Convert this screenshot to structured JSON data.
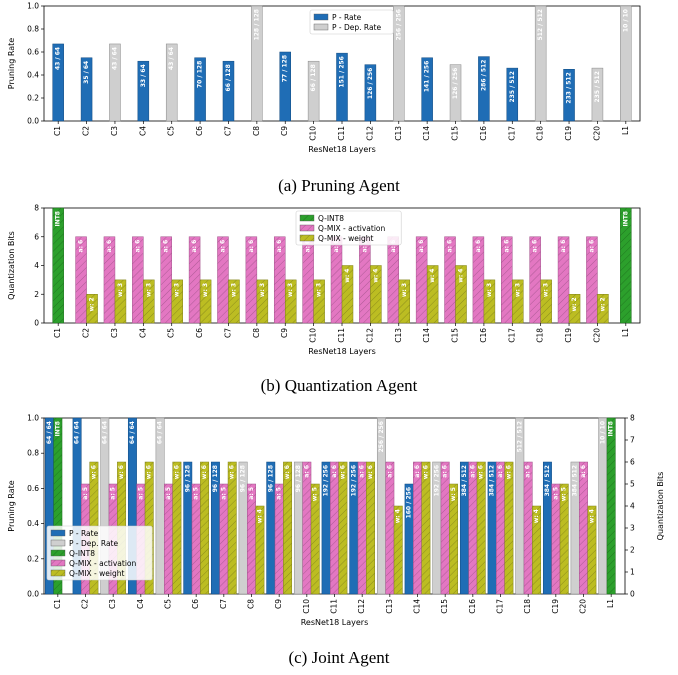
{
  "colors": {
    "p_rate": "#1f6db5",
    "p_dep": "#cfcfcf",
    "q_int8": "#2ca02c",
    "q_act": "#e377c2",
    "q_w": "#bcbd22"
  },
  "chart_data": [
    {
      "type": "bar",
      "caption": "(a) Pruning Agent",
      "xlabel": "ResNet18 Layers",
      "ylabel": "Pruning Rate",
      "ylim": [
        0,
        1.0
      ],
      "yticks": [
        "0.0",
        "0.2",
        "0.4",
        "0.6",
        "0.8",
        "1.0"
      ],
      "legend": [
        "P - Rate",
        "P - Dep. Rate"
      ],
      "categories": [
        "C1",
        "C2",
        "C3",
        "C4",
        "C5",
        "C6",
        "C7",
        "C8",
        "C9",
        "C10",
        "C11",
        "C12",
        "C13",
        "C14",
        "C15",
        "C16",
        "C17",
        "C18",
        "C19",
        "C20",
        "L1"
      ],
      "bars": [
        {
          "kind": "p",
          "value": 0.67,
          "label": "43 / 64"
        },
        {
          "kind": "p",
          "value": 0.55,
          "label": "35 / 64"
        },
        {
          "kind": "dep",
          "value": 0.67,
          "label": "43 / 64"
        },
        {
          "kind": "p",
          "value": 0.52,
          "label": "33 / 64"
        },
        {
          "kind": "dep",
          "value": 0.67,
          "label": "43 / 64"
        },
        {
          "kind": "p",
          "value": 0.55,
          "label": "70 / 128"
        },
        {
          "kind": "p",
          "value": 0.52,
          "label": "66 / 128"
        },
        {
          "kind": "dep",
          "value": 1.0,
          "label": "128 / 128"
        },
        {
          "kind": "p",
          "value": 0.6,
          "label": "77 / 128"
        },
        {
          "kind": "dep",
          "value": 0.52,
          "label": "66 / 128"
        },
        {
          "kind": "p",
          "value": 0.59,
          "label": "151 / 256"
        },
        {
          "kind": "p",
          "value": 0.49,
          "label": "126 / 256"
        },
        {
          "kind": "dep",
          "value": 1.0,
          "label": "256 / 256"
        },
        {
          "kind": "p",
          "value": 0.55,
          "label": "141 / 256"
        },
        {
          "kind": "dep",
          "value": 0.49,
          "label": "126 / 256"
        },
        {
          "kind": "p",
          "value": 0.56,
          "label": "286 / 512"
        },
        {
          "kind": "p",
          "value": 0.46,
          "label": "235 / 512"
        },
        {
          "kind": "dep",
          "value": 1.0,
          "label": "512 / 512"
        },
        {
          "kind": "p",
          "value": 0.45,
          "label": "233 / 512"
        },
        {
          "kind": "dep",
          "value": 0.46,
          "label": "235 / 512"
        },
        {
          "kind": "dep",
          "value": 1.0,
          "label": "10 / 10"
        }
      ]
    },
    {
      "type": "bar",
      "caption": "(b) Quantization Agent",
      "xlabel": "ResNet18 Layers",
      "ylabel": "Quantization Bits",
      "ylim": [
        0,
        8
      ],
      "yticks": [
        "0",
        "2",
        "4",
        "6",
        "8"
      ],
      "legend": [
        "Q-INT8",
        "Q-MIX - activation",
        "Q-MIX - weight"
      ],
      "categories": [
        "C1",
        "C2",
        "C3",
        "C4",
        "C5",
        "C6",
        "C7",
        "C8",
        "C9",
        "C10",
        "C11",
        "C12",
        "C13",
        "C14",
        "C15",
        "C16",
        "C17",
        "C18",
        "C19",
        "C20",
        "L1"
      ],
      "int8_label": "INT8",
      "activation_bits": [
        8,
        6,
        6,
        6,
        6,
        6,
        6,
        6,
        6,
        6,
        6,
        6,
        6,
        6,
        6,
        6,
        6,
        6,
        6,
        6,
        8
      ],
      "activation_labels": [
        "",
        "a: 6",
        "a: 6",
        "a: 6",
        "a: 6",
        "a: 6",
        "a: 6",
        "a: 6",
        "a: 6",
        "a: 6",
        "a: 6",
        "a: 6",
        "a: 6",
        "a: 6",
        "a: 6",
        "a: 6",
        "a: 6",
        "a: 6",
        "a: 6",
        "a: 6",
        ""
      ],
      "weight_bits": [
        null,
        2,
        3,
        3,
        3,
        3,
        3,
        3,
        3,
        3,
        4,
        4,
        3,
        4,
        4,
        3,
        3,
        3,
        2,
        2,
        null
      ],
      "weight_labels": [
        "",
        "w: 2",
        "w: 3",
        "w: 3",
        "w: 3",
        "w: 3",
        "w: 3",
        "w: 3",
        "w: 3",
        "w: 3",
        "w: 4",
        "w: 4",
        "w: 3",
        "w: 4",
        "w: 4",
        "w: 3",
        "w: 3",
        "w: 3",
        "w: 2",
        "w: 2",
        ""
      ]
    },
    {
      "type": "bar",
      "caption": "(c) Joint Agent",
      "xlabel": "ResNet18 Layers",
      "ylabel": "Pruning Rate",
      "ylabel_right": "Quantization Bits",
      "ylim": [
        0,
        1.0
      ],
      "ylim_right": [
        0,
        8
      ],
      "yticks": [
        "0.0",
        "0.2",
        "0.4",
        "0.6",
        "0.8",
        "1.0"
      ],
      "yticks_right": [
        "0",
        "1",
        "2",
        "3",
        "4",
        "5",
        "6",
        "7",
        "8"
      ],
      "legend": [
        "P - Rate",
        "P - Dep. Rate",
        "Q-INT8",
        "Q-MIX - activation",
        "Q-MIX - weight"
      ],
      "categories": [
        "C1",
        "C2",
        "C3",
        "C4",
        "C5",
        "C6",
        "C7",
        "C8",
        "C9",
        "C10",
        "C11",
        "C12",
        "C13",
        "C14",
        "C15",
        "C16",
        "C17",
        "C18",
        "C19",
        "C20",
        "L1"
      ],
      "prune": [
        {
          "kind": "p",
          "value": 1.0,
          "label": "64 / 64"
        },
        {
          "kind": "p",
          "value": 1.0,
          "label": "64 / 64"
        },
        {
          "kind": "dep",
          "value": 1.0,
          "label": "64 / 64"
        },
        {
          "kind": "p",
          "value": 1.0,
          "label": "64 / 64"
        },
        {
          "kind": "dep",
          "value": 1.0,
          "label": "64 / 64"
        },
        {
          "kind": "p",
          "value": 0.75,
          "label": "96 / 128"
        },
        {
          "kind": "p",
          "value": 0.75,
          "label": "96 / 128"
        },
        {
          "kind": "dep",
          "value": 0.75,
          "label": "96 / 128"
        },
        {
          "kind": "p",
          "value": 0.75,
          "label": "96 / 128"
        },
        {
          "kind": "dep",
          "value": 0.75,
          "label": "96 / 128"
        },
        {
          "kind": "p",
          "value": 0.75,
          "label": "192 / 256"
        },
        {
          "kind": "p",
          "value": 0.75,
          "label": "192 / 256"
        },
        {
          "kind": "dep",
          "value": 1.0,
          "label": "256 / 256"
        },
        {
          "kind": "p",
          "value": 0.625,
          "label": "160 / 256"
        },
        {
          "kind": "dep",
          "value": 0.75,
          "label": "192 / 256"
        },
        {
          "kind": "p",
          "value": 0.75,
          "label": "384 / 512"
        },
        {
          "kind": "p",
          "value": 0.75,
          "label": "384 / 512"
        },
        {
          "kind": "dep",
          "value": 1.0,
          "label": "512 / 512"
        },
        {
          "kind": "p",
          "value": 0.75,
          "label": "384 / 512"
        },
        {
          "kind": "dep",
          "value": 0.75,
          "label": "384 / 512"
        },
        {
          "kind": "dep",
          "value": 1.0,
          "label": "10 / 10"
        }
      ],
      "int8_label": "INT8",
      "activation_bits": [
        8,
        5,
        5,
        5,
        5,
        5,
        5,
        5,
        5,
        6,
        6,
        6,
        6,
        6,
        6,
        6,
        6,
        6,
        5,
        6,
        8
      ],
      "activation_labels": [
        "",
        "a: 5",
        "a: 5",
        "a: 5",
        "a: 5",
        "a: 5",
        "a: 5",
        "a: 5",
        "a: 5",
        "a: 6",
        "a: 6",
        "a: 6",
        "a: 6",
        "a: 6",
        "a: 6",
        "a: 6",
        "a: 6",
        "a: 6",
        "a: 5",
        "a: 6",
        ""
      ],
      "weight_bits": [
        null,
        6,
        6,
        6,
        6,
        6,
        6,
        4,
        6,
        5,
        6,
        6,
        4,
        6,
        5,
        6,
        6,
        4,
        5,
        4,
        null
      ],
      "weight_labels": [
        "",
        "w: 6",
        "w: 6",
        "w: 6",
        "w: 6",
        "w: 6",
        "w: 6",
        "w: 4",
        "w: 6",
        "w: 5",
        "w: 6",
        "w: 6",
        "w: 4",
        "w: 6",
        "w: 5",
        "w: 6",
        "w: 6",
        "w: 4",
        "w: 5",
        "w: 4",
        ""
      ]
    }
  ]
}
